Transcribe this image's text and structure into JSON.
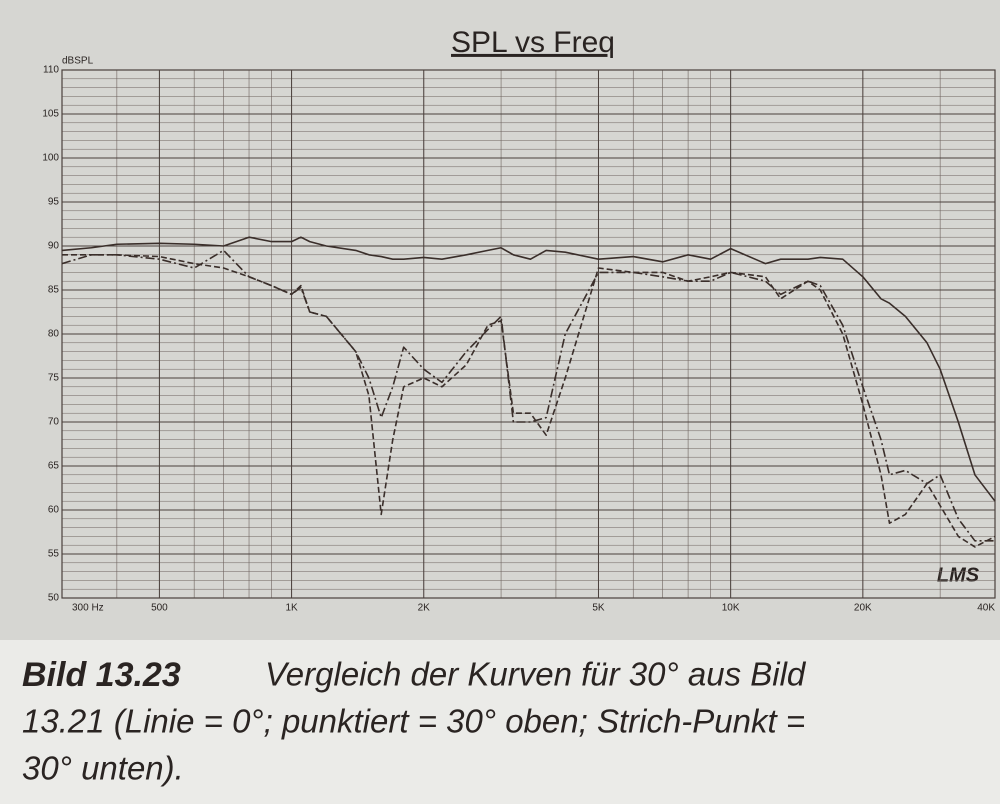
{
  "chart_data": {
    "type": "line",
    "title": "SPL vs Freq",
    "y_label": "dBSPL",
    "annotation": "LMS",
    "x": [
      300,
      350,
      400,
      500,
      600,
      700,
      800,
      900,
      1000,
      1050,
      1100,
      1200,
      1400,
      1500,
      1600,
      1700,
      1800,
      2000,
      2200,
      2500,
      2800,
      3000,
      3200,
      3500,
      3800,
      4200,
      5000,
      6000,
      7000,
      8000,
      9000,
      10000,
      12000,
      13000,
      15000,
      16000,
      18000,
      20000,
      22000,
      23000,
      25000,
      28000,
      30000,
      33000,
      36000,
      40000
    ],
    "series": [
      {
        "color": "#3a2e2a",
        "line_style": "solid",
        "values": [
          89.5,
          89.8,
          90.2,
          90.3,
          90.2,
          90.0,
          91,
          90.5,
          90.5,
          91,
          90.5,
          90,
          89.5,
          89,
          88.8,
          88.5,
          88.5,
          88.7,
          88.5,
          89,
          89.5,
          89.8,
          89,
          88.5,
          89.5,
          89.3,
          88.5,
          88.8,
          88.2,
          89,
          88.5,
          89.7,
          88,
          88.5,
          88.5,
          88.7,
          88.5,
          86.5,
          84,
          83.5,
          82,
          79,
          76,
          70,
          64,
          61
        ]
      },
      {
        "color": "#3a2e2a",
        "line_style": "dashed",
        "values": [
          89,
          89,
          89,
          88.8,
          88,
          87.5,
          86.5,
          85.5,
          84.5,
          85.5,
          82.5,
          82,
          78,
          73,
          59.5,
          68,
          74,
          75,
          74,
          76.5,
          81,
          81.5,
          71,
          71,
          68.5,
          75,
          87.5,
          87,
          87,
          86,
          86.5,
          87,
          86.5,
          84,
          86,
          85,
          80,
          72,
          64,
          58.5,
          59.5,
          63,
          60.5,
          57,
          55.8,
          57
        ]
      },
      {
        "color": "#3a2e2a",
        "line_style": "dashdot",
        "values": [
          88,
          89,
          89,
          88.5,
          87.5,
          89.5,
          86.5,
          85.5,
          84.5,
          85.3,
          82.5,
          82,
          78,
          75,
          70.5,
          74,
          78.5,
          76,
          74.5,
          78,
          80.5,
          82,
          70,
          70,
          70.5,
          80,
          87,
          87,
          86.5,
          86,
          86,
          87,
          86,
          84.5,
          86,
          85.5,
          81,
          74,
          68,
          64,
          64.5,
          63,
          64,
          59,
          56.5,
          56.5
        ]
      }
    ],
    "log_x": true,
    "grid": true,
    "minor_grid": true,
    "xlim": [
      300,
      40000
    ],
    "xticks": [
      {
        "value": 300,
        "label": "300 Hz"
      },
      {
        "value": 500,
        "label": "500"
      },
      {
        "value": 1000,
        "label": "1K"
      },
      {
        "value": 2000,
        "label": "2K"
      },
      {
        "value": 5000,
        "label": "5K"
      },
      {
        "value": 10000,
        "label": "10K"
      },
      {
        "value": 20000,
        "label": "20K"
      },
      {
        "value": 40000,
        "label": "40K"
      }
    ],
    "ylim": [
      50,
      110
    ],
    "yticks": [
      50,
      55,
      60,
      65,
      70,
      75,
      80,
      85,
      90,
      95,
      100,
      105,
      110
    ]
  },
  "caption": {
    "label": "Bild 13.23",
    "lines": [
      "Vergleich der Kurven für 30° aus Bild",
      "13.21 (Linie = 0°; punktiert = 30° oben; Strich-Punkt =",
      "30° unten)."
    ]
  }
}
